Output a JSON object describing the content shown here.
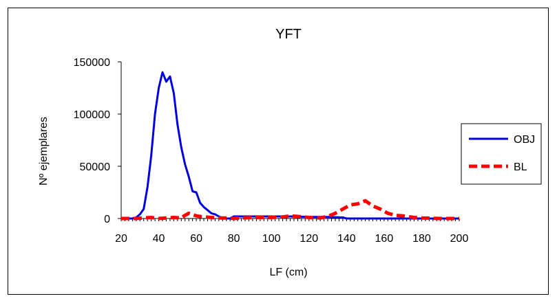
{
  "chart_data": {
    "type": "line",
    "title": "YFT",
    "xlabel": "LF (cm)",
    "ylabel": "Nº ejemplares",
    "xlim": [
      20,
      200
    ],
    "ylim": [
      0,
      150000
    ],
    "x_ticks": [
      "20",
      "40",
      "60",
      "80",
      "100",
      "120",
      "140",
      "160",
      "180",
      "200"
    ],
    "y_ticks": [
      "0",
      "50000",
      "100000",
      "150000"
    ],
    "grid": false,
    "legend_position": "right",
    "series": [
      {
        "name": "OBJ",
        "color": "#0000e0",
        "style": "solid",
        "x": [
          20,
          22,
          24,
          26,
          28,
          30,
          32,
          34,
          36,
          38,
          40,
          42,
          44,
          46,
          48,
          50,
          52,
          54,
          56,
          58,
          60,
          62,
          64,
          66,
          68,
          70,
          72,
          74,
          76,
          78,
          80,
          84,
          90,
          100,
          110,
          120,
          130,
          138,
          140,
          150,
          160,
          170,
          180,
          190,
          200
        ],
        "values": [
          0,
          0,
          0,
          0,
          1000,
          4000,
          9000,
          30000,
          60000,
          100000,
          125000,
          140000,
          131000,
          136000,
          120000,
          90000,
          68000,
          52000,
          40000,
          26000,
          25000,
          15000,
          11000,
          8000,
          5000,
          4000,
          2000,
          500,
          0,
          0,
          2000,
          2000,
          2000,
          2000,
          2000,
          1500,
          1500,
          1000,
          0,
          0,
          0,
          0,
          0,
          0,
          0
        ]
      },
      {
        "name": "BL",
        "color": "#ff0000",
        "style": "dashed",
        "x": [
          20,
          24,
          28,
          32,
          36,
          40,
          44,
          48,
          52,
          54,
          56,
          60,
          64,
          68,
          72,
          76,
          80,
          84,
          90,
          100,
          106,
          110,
          114,
          120,
          126,
          130,
          134,
          138,
          142,
          146,
          150,
          154,
          158,
          162,
          166,
          170,
          176,
          180,
          190,
          200
        ],
        "values": [
          0,
          0,
          0,
          500,
          1000,
          0,
          500,
          1000,
          500,
          3000,
          5000,
          2500,
          1500,
          1000,
          500,
          500,
          0,
          500,
          1000,
          1000,
          1500,
          2500,
          2000,
          1000,
          500,
          2000,
          5000,
          9000,
          13000,
          14000,
          17000,
          12000,
          9000,
          5000,
          3000,
          2500,
          1000,
          500,
          0,
          0
        ]
      }
    ]
  }
}
